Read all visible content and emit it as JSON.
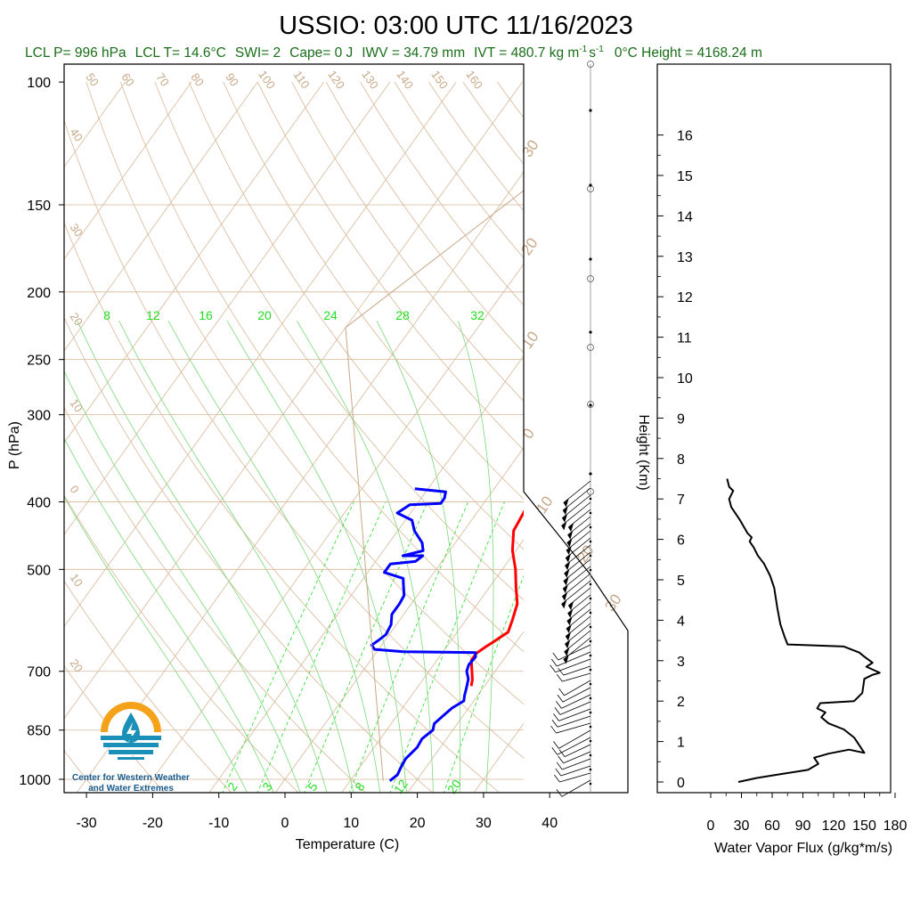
{
  "title": "USSIO: 03:00 UTC 11/16/2023",
  "subtitle": {
    "lcl_p": "LCL P= 996 hPa",
    "lcl_t": "LCL T= 14.6°C",
    "swi": "SWI= 2",
    "cape": "Cape= 0 J",
    "iwv": "IWV = 34.79 mm",
    "ivt": "IVT = 480.7 kg m",
    "ivt_exp1": "-1",
    "ivt_s": "s",
    "ivt_exp2": "-1",
    "zero_height": "0°C Height = 4168.24 m"
  },
  "logo": {
    "line1": "Center for Western Weather",
    "line2": "and Water Extremes"
  },
  "colors": {
    "temperature": "#ff0000",
    "dewpoint": "#0000ff",
    "isotherm": "#d8b898",
    "mixing_ratio": "#22dd22",
    "moist_adiabat": "#7ad87a",
    "parcel": "#c8a888",
    "flux": "#000000",
    "logo_orange": "#f5a21b",
    "logo_blue": "#1a8fb8"
  },
  "chart_data": [
    {
      "type": "line",
      "name": "skew-t",
      "xlabel": "Temperature (C)",
      "ylabel": "P (hPa)",
      "x_ticks": [
        "-30",
        "-20",
        "-10",
        "0",
        "10",
        "20",
        "30",
        "40"
      ],
      "y_ticks": [
        "100",
        "150",
        "200",
        "250",
        "300",
        "400",
        "500",
        "700",
        "850",
        "1000"
      ],
      "xlim": [
        -33,
        40
      ],
      "ylim": [
        1050,
        100
      ],
      "y_scale": "log",
      "tan_labels_top": [
        "50",
        "60",
        "70",
        "80",
        "90",
        "100",
        "110",
        "120",
        "130",
        "140",
        "150",
        "160"
      ],
      "tan_labels_left": [
        "40",
        "30",
        "20",
        "10",
        "0",
        "10",
        "20"
      ],
      "tan_labels_right": [
        "30",
        "20",
        "10",
        "0",
        "10",
        "20",
        "30"
      ],
      "mixing_ratio_labels_top": [
        "8",
        "12",
        "16",
        "20",
        "24",
        "28",
        "32"
      ],
      "mixing_ratio_labels_bottom": [
        "2",
        "3",
        "5",
        "8",
        "12",
        "20"
      ],
      "series": [
        {
          "key": "temperature",
          "points": [
            [
              6.5,
              385
            ],
            [
              7.5,
              393
            ],
            [
              7,
              412
            ],
            [
              7.5,
              440
            ],
            [
              9.5,
              470
            ],
            [
              12,
              500
            ],
            [
              14,
              530
            ],
            [
              16,
              560
            ],
            [
              17,
              590
            ],
            [
              17.7,
              615
            ],
            [
              17,
              627
            ],
            [
              16.5,
              636
            ],
            [
              15.9,
              646
            ],
            [
              15.2,
              660
            ],
            [
              15.2,
              675
            ],
            [
              16.5,
              700
            ],
            [
              17.5,
              720
            ],
            [
              18,
              735
            ]
          ]
        },
        {
          "key": "dewpoint",
          "points": [
            [
              -12,
              383
            ],
            [
              -7,
              387
            ],
            [
              -6.5,
              395
            ],
            [
              -6.5,
              402
            ],
            [
              -11,
              404
            ],
            [
              -12,
              415
            ],
            [
              -9,
              425
            ],
            [
              -7.5,
              440
            ],
            [
              -5,
              458
            ],
            [
              -4,
              470
            ],
            [
              -6.5,
              478
            ],
            [
              -3.5,
              478
            ],
            [
              -4,
              487
            ],
            [
              -7.5,
              491
            ],
            [
              -7.5,
              505
            ],
            [
              -4,
              515
            ],
            [
              -3,
              530
            ],
            [
              -2,
              545
            ],
            [
              -1.8,
              560
            ],
            [
              -1.8,
              580
            ],
            [
              -0.8,
              600
            ],
            [
              -0.5,
              620
            ],
            [
              -1,
              632
            ],
            [
              -1.5,
              642
            ],
            [
              -0.6,
              651
            ],
            [
              4,
              656
            ],
            [
              15,
              658
            ],
            [
              15.5,
              668
            ],
            [
              15.3,
              685
            ],
            [
              15.7,
              700
            ],
            [
              16.8,
              718
            ],
            [
              17.5,
              740
            ],
            [
              18,
              758
            ],
            [
              18.5,
              772
            ],
            [
              17.5,
              790
            ],
            [
              17,
              810
            ],
            [
              16.5,
              832
            ],
            [
              17,
              850
            ],
            [
              16.3,
              875
            ],
            [
              16.5,
              900
            ],
            [
              16,
              935
            ],
            [
              16.2,
              960
            ],
            [
              16.5,
              985
            ],
            [
              16,
              1005
            ]
          ]
        },
        {
          "key": "parcel",
          "points": [
            [
              15,
              1005
            ],
            [
              -40,
              225
            ],
            [
              -20,
              106
            ]
          ]
        }
      ]
    },
    {
      "type": "line",
      "name": "water-vapor-flux",
      "xlabel": "Water Vapor Flux (g/kg*m/s)",
      "ylabel": "Height (Km)",
      "x_ticks": [
        "0",
        "30",
        "60",
        "90",
        "120",
        "150",
        "180"
      ],
      "y_ticks": [
        "0",
        "1",
        "2",
        "3",
        "4",
        "5",
        "6",
        "7",
        "8",
        "9",
        "10",
        "11",
        "12",
        "13",
        "14",
        "15",
        "16"
      ],
      "xlim": [
        0,
        180
      ],
      "ylim": [
        -0.15,
        16.3
      ],
      "series": [
        {
          "key": "flux",
          "points": [
            [
              27,
              0
            ],
            [
              45,
              0.1
            ],
            [
              70,
              0.2
            ],
            [
              95,
              0.3
            ],
            [
              105,
              0.45
            ],
            [
              101,
              0.6
            ],
            [
              115,
              0.7
            ],
            [
              135,
              0.8
            ],
            [
              150,
              0.72
            ],
            [
              140,
              1.1
            ],
            [
              130,
              1.3
            ],
            [
              115,
              1.45
            ],
            [
              108,
              1.6
            ],
            [
              112,
              1.72
            ],
            [
              104,
              1.82
            ],
            [
              107,
              1.95
            ],
            [
              140,
              2.0
            ],
            [
              148,
              2.2
            ],
            [
              150,
              2.55
            ],
            [
              158,
              2.65
            ],
            [
              165,
              2.7
            ],
            [
              152,
              2.85
            ],
            [
              158,
              2.95
            ],
            [
              150,
              3.1
            ],
            [
              145,
              3.2
            ],
            [
              130,
              3.35
            ],
            [
              75,
              3.4
            ],
            [
              72,
              3.6
            ],
            [
              68,
              3.9
            ],
            [
              65,
              4.3
            ],
            [
              62,
              4.8
            ],
            [
              58,
              5.1
            ],
            [
              52,
              5.4
            ],
            [
              46,
              5.6
            ],
            [
              42,
              5.8
            ],
            [
              38,
              5.95
            ],
            [
              40,
              6.05
            ],
            [
              36,
              6.15
            ],
            [
              28,
              6.5
            ],
            [
              20,
              6.8
            ],
            [
              18,
              7.0
            ],
            [
              22,
              7.2
            ],
            [
              18,
              7.3
            ],
            [
              16,
              7.5
            ]
          ]
        }
      ]
    }
  ]
}
